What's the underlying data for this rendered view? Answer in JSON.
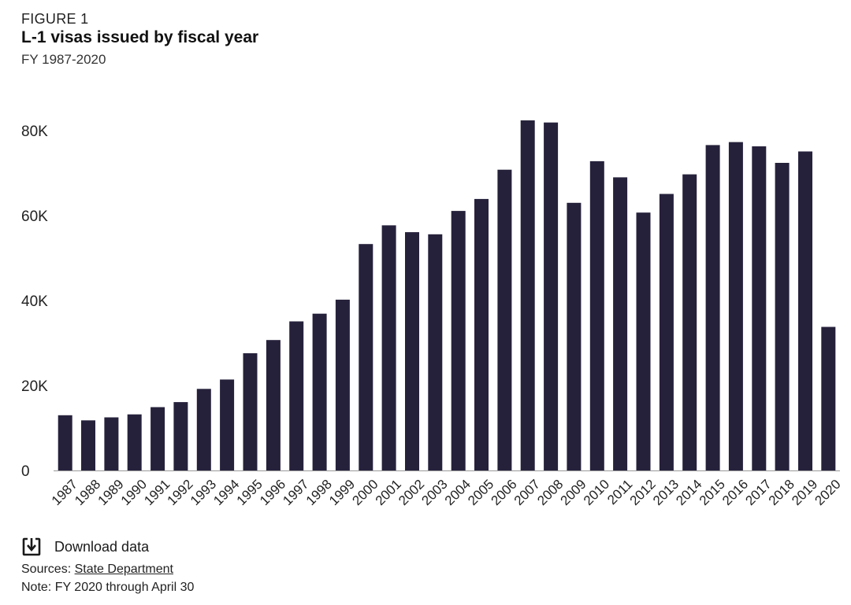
{
  "header": {
    "figure_label": "FIGURE 1",
    "title": "L-1 visas issued by fiscal year",
    "subtitle": "FY 1987-2020"
  },
  "footer": {
    "download_label": "Download data",
    "download_icon": "download-icon",
    "sources_prefix": "Sources:",
    "sources_link": "State Department",
    "note": "Note: FY 2020 through April 30"
  },
  "colors": {
    "bar": "#26213b",
    "axis": "#999999"
  },
  "chart_data": {
    "type": "bar",
    "title": "L-1 visas issued by fiscal year",
    "subtitle": "FY 1987-2020",
    "xlabel": "",
    "ylabel": "",
    "ylim": [
      0,
      85000
    ],
    "yticks": [
      0,
      20000,
      40000,
      60000,
      80000
    ],
    "ytick_labels": [
      "0",
      "20K",
      "40K",
      "60K",
      "80K"
    ],
    "grid": false,
    "legend": "none",
    "categories": [
      "1987",
      "1988",
      "1989",
      "1990",
      "1991",
      "1992",
      "1993",
      "1994",
      "1995",
      "1996",
      "1997",
      "1998",
      "1999",
      "2000",
      "2001",
      "2002",
      "2003",
      "2004",
      "2005",
      "2006",
      "2007",
      "2008",
      "2009",
      "2010",
      "2011",
      "2012",
      "2013",
      "2014",
      "2015",
      "2016",
      "2017",
      "2018",
      "2019",
      "2020"
    ],
    "values": [
      13000,
      11800,
      12500,
      13200,
      14900,
      16100,
      19200,
      21400,
      27600,
      30700,
      35100,
      36900,
      40200,
      53300,
      57700,
      56100,
      55600,
      61100,
      63900,
      70800,
      82400,
      81900,
      63000,
      72800,
      69000,
      60700,
      65100,
      69700,
      76600,
      77300,
      76300,
      72400,
      75100,
      33800
    ]
  }
}
